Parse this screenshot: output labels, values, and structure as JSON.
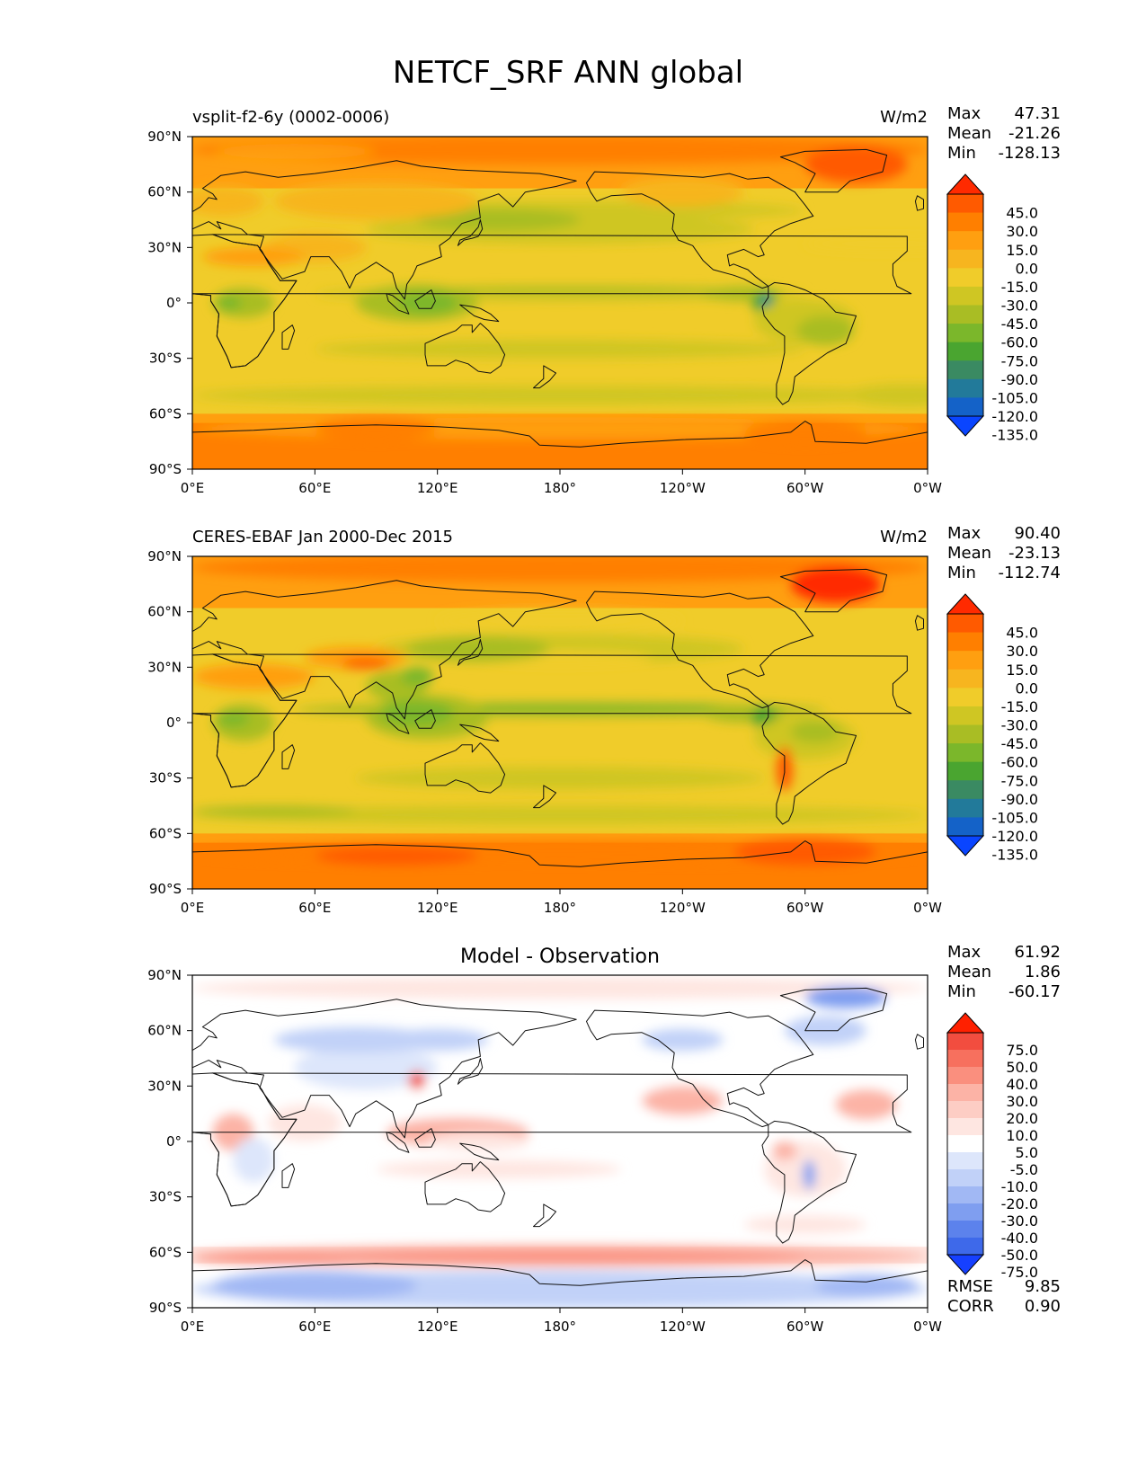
{
  "figure_title": "NETCF_SRF ANN global",
  "chart_data": [
    {
      "type": "heatmap",
      "projection": "equirectangular",
      "variant": "abs",
      "title": "",
      "left_label": "vsplit-f2-6y (0002-0006)",
      "units": "W/m2",
      "stats": [
        {
          "label": "Max",
          "value": "47.31"
        },
        {
          "label": "Mean",
          "value": "-21.26"
        },
        {
          "label": "Min",
          "value": "-128.13"
        }
      ],
      "x_ticks": [
        "0°E",
        "60°E",
        "120°E",
        "180°",
        "120°W",
        "60°W",
        "0°W"
      ],
      "y_ticks": [
        "90°N",
        "60°N",
        "30°N",
        "0°",
        "30°S",
        "60°S",
        "90°S"
      ],
      "colorbar_levels": [
        "45.0",
        "30.0",
        "15.0",
        "0.0",
        "-15.0",
        "-30.0",
        "-45.0",
        "-60.0",
        "-75.0",
        "-90.0",
        "-105.0",
        "-120.0",
        "-135.0"
      ],
      "colorbar_colors": [
        "#ff2a00",
        "#ff5a00",
        "#ff7f00",
        "#ff9f10",
        "#f7b51f",
        "#f0cc2a",
        "#cfc623",
        "#a9bd24",
        "#7bb72b",
        "#4aa530",
        "#3a8a62",
        "#227a9a",
        "#1462c8",
        "#0a45ff"
      ],
      "extra_stats": []
    },
    {
      "type": "heatmap",
      "projection": "equirectangular",
      "variant": "obs",
      "title": "",
      "left_label": "CERES-EBAF Jan 2000-Dec 2015",
      "units": "W/m2",
      "stats": [
        {
          "label": "Max",
          "value": "90.40"
        },
        {
          "label": "Mean",
          "value": "-23.13"
        },
        {
          "label": "Min",
          "value": "-112.74"
        }
      ],
      "x_ticks": [
        "0°E",
        "60°E",
        "120°E",
        "180°",
        "120°W",
        "60°W",
        "0°W"
      ],
      "y_ticks": [
        "90°N",
        "60°N",
        "30°N",
        "0°",
        "30°S",
        "60°S",
        "90°S"
      ],
      "colorbar_levels": [
        "45.0",
        "30.0",
        "15.0",
        "0.0",
        "-15.0",
        "-30.0",
        "-45.0",
        "-60.0",
        "-75.0",
        "-90.0",
        "-105.0",
        "-120.0",
        "-135.0"
      ],
      "colorbar_colors": [
        "#ff2a00",
        "#ff5a00",
        "#ff7f00",
        "#ff9f10",
        "#f7b51f",
        "#f0cc2a",
        "#cfc623",
        "#a9bd24",
        "#7bb72b",
        "#4aa530",
        "#3a8a62",
        "#227a9a",
        "#1462c8",
        "#0a45ff"
      ],
      "extra_stats": []
    },
    {
      "type": "heatmap",
      "projection": "equirectangular",
      "variant": "diff",
      "title": "Model - Observation",
      "left_label": "",
      "units": "",
      "stats": [
        {
          "label": "Max",
          "value": "61.92"
        },
        {
          "label": "Mean",
          "value": "1.86"
        },
        {
          "label": "Min",
          "value": "-60.17"
        }
      ],
      "x_ticks": [
        "0°E",
        "60°E",
        "120°E",
        "180°",
        "120°W",
        "60°W",
        "0°W"
      ],
      "y_ticks": [
        "90°N",
        "60°N",
        "30°N",
        "0°",
        "30°S",
        "60°S",
        "90°S"
      ],
      "colorbar_levels": [
        "75.0",
        "50.0",
        "40.0",
        "30.0",
        "20.0",
        "10.0",
        "5.0",
        "-5.0",
        "-10.0",
        "-20.0",
        "-30.0",
        "-40.0",
        "-50.0",
        "-75.0"
      ],
      "colorbar_colors": [
        "#ff2000",
        "#f24d3f",
        "#f7705e",
        "#fa8f7e",
        "#fcb3a6",
        "#fdcdc4",
        "#fee6e1",
        "#ffffff",
        "#dde6fb",
        "#c1d1f8",
        "#a1b8f4",
        "#7f9ef0",
        "#5c82ec",
        "#3e69ea",
        "#1640ff"
      ],
      "extra_stats": [
        {
          "label": "RMSE",
          "value": "9.85"
        },
        {
          "label": "CORR",
          "value": "0.90"
        }
      ]
    }
  ]
}
